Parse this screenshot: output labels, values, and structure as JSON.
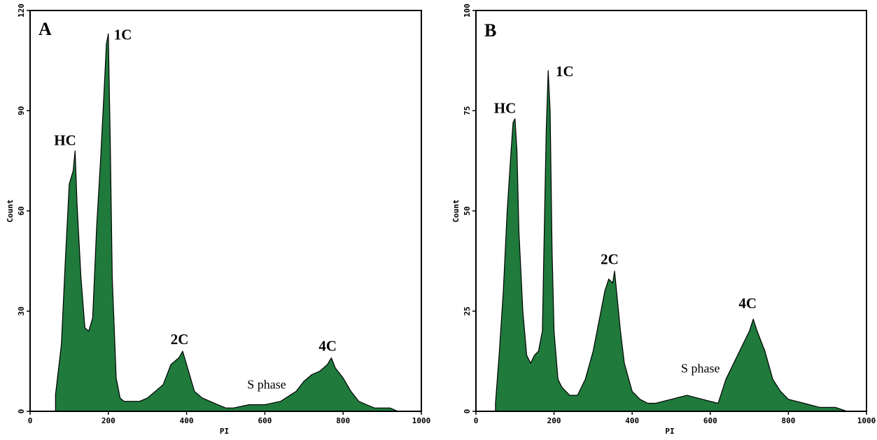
{
  "colors": {
    "fill": "#1f7a3c",
    "stroke": "#000000",
    "frame": "#000000",
    "background": "#ffffff"
  },
  "chart_data": [
    {
      "type": "area",
      "panel": "A",
      "xlabel": "PI",
      "ylabel": "Count",
      "xlim": [
        0,
        1000
      ],
      "ylim": [
        0,
        120
      ],
      "x_ticks": [
        "0",
        "200",
        "400",
        "600",
        "800",
        "1000"
      ],
      "y_ticks": [
        "0",
        "30",
        "60",
        "90",
        "120"
      ],
      "grid": false,
      "x": [
        65,
        80,
        90,
        100,
        110,
        115,
        120,
        130,
        140,
        150,
        160,
        170,
        180,
        190,
        195,
        200,
        205,
        210,
        220,
        230,
        240,
        260,
        280,
        300,
        340,
        360,
        380,
        390,
        400,
        410,
        420,
        440,
        460,
        480,
        500,
        520,
        560,
        600,
        640,
        680,
        700,
        720,
        740,
        760,
        770,
        780,
        800,
        820,
        840,
        860,
        880,
        900,
        920,
        940,
        950
      ],
      "y": [
        5,
        20,
        45,
        68,
        72,
        78,
        62,
        40,
        25,
        24,
        28,
        55,
        75,
        98,
        110,
        113,
        80,
        40,
        10,
        4,
        3,
        3,
        3,
        4,
        8,
        14,
        16,
        18,
        14,
        10,
        6,
        4,
        3,
        2,
        1,
        1,
        2,
        2,
        3,
        6,
        9,
        11,
        12,
        14,
        16,
        13,
        10,
        6,
        3,
        2,
        1,
        1,
        1,
        0,
        0
      ],
      "annotations": [
        {
          "text": "HC",
          "x": 115,
          "y": 78
        },
        {
          "text": "1C",
          "x": 200,
          "y": 113
        },
        {
          "text": "2C",
          "x": 395,
          "y": 18
        },
        {
          "text": "S phase",
          "x": 555,
          "y": 6
        },
        {
          "text": "4C",
          "x": 770,
          "y": 16
        }
      ]
    },
    {
      "type": "area",
      "panel": "B",
      "xlabel": "PI",
      "ylabel": "Count",
      "xlim": [
        0,
        1000
      ],
      "ylim": [
        0,
        100
      ],
      "x_ticks": [
        "0",
        "200",
        "400",
        "600",
        "800",
        "1000"
      ],
      "y_ticks": [
        "0",
        "25",
        "50",
        "75",
        "100"
      ],
      "grid": false,
      "x": [
        50,
        60,
        70,
        80,
        90,
        95,
        100,
        105,
        110,
        120,
        130,
        140,
        150,
        160,
        170,
        175,
        180,
        185,
        190,
        195,
        200,
        210,
        220,
        240,
        260,
        280,
        300,
        320,
        330,
        340,
        350,
        355,
        360,
        370,
        380,
        400,
        420,
        440,
        460,
        500,
        540,
        580,
        620,
        640,
        660,
        680,
        690,
        700,
        710,
        720,
        740,
        760,
        780,
        800,
        840,
        880,
        920,
        950
      ],
      "y": [
        2,
        15,
        30,
        50,
        65,
        72,
        73,
        65,
        45,
        25,
        14,
        12,
        14,
        15,
        20,
        45,
        70,
        85,
        75,
        40,
        20,
        8,
        6,
        4,
        4,
        8,
        15,
        25,
        30,
        33,
        32,
        35,
        30,
        20,
        12,
        5,
        3,
        2,
        2,
        3,
        4,
        3,
        2,
        8,
        12,
        16,
        18,
        20,
        23,
        20,
        15,
        8,
        5,
        3,
        2,
        1,
        1,
        0
      ],
      "annotations": [
        {
          "text": "HC",
          "x": 100,
          "y": 73
        },
        {
          "text": "1C",
          "x": 190,
          "y": 85
        },
        {
          "text": "2C",
          "x": 355,
          "y": 35
        },
        {
          "text": "S phase",
          "x": 525,
          "y": 9
        },
        {
          "text": "4C",
          "x": 705,
          "y": 24
        }
      ]
    }
  ]
}
